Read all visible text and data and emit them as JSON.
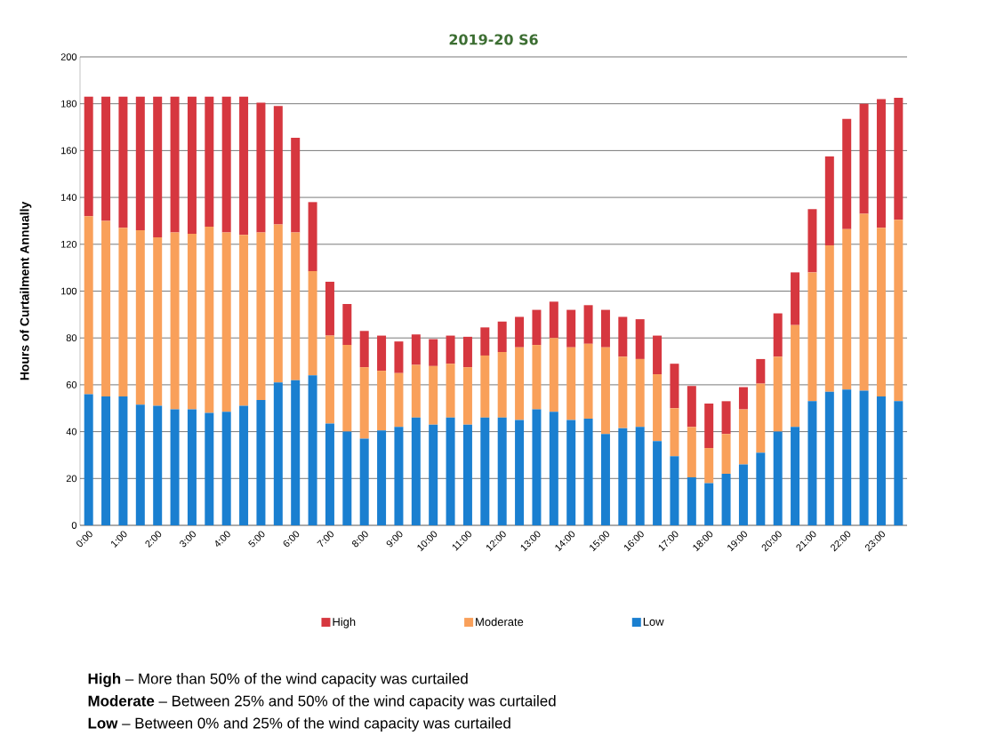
{
  "chart_data": {
    "type": "bar",
    "title": "2019-20 S6",
    "ylabel": "Hours of Curtailment Annually",
    "categories": [
      "0:00",
      null,
      "1:00",
      null,
      "2:00",
      null,
      "3:00",
      null,
      "4:00",
      null,
      "5:00",
      null,
      "6:00",
      null,
      "7:00",
      null,
      "8:00",
      null,
      "9:00",
      null,
      "10:00",
      null,
      "11:00",
      null,
      "12:00",
      null,
      "13:00",
      null,
      "14:00",
      null,
      "15:00",
      null,
      "16:00",
      null,
      "17:00",
      null,
      "18:00",
      null,
      "19:00",
      null,
      "20:00",
      null,
      "21:00",
      null,
      "22:00",
      null,
      "23:00",
      null
    ],
    "stacked": true,
    "series": [
      {
        "name": "Low",
        "color": "#1a7fd0",
        "values": [
          56,
          55,
          55,
          51.5,
          51,
          49.5,
          49.5,
          48,
          48.5,
          51,
          53.5,
          61,
          62,
          64,
          43.5,
          40,
          37,
          40.5,
          42,
          46,
          43,
          46,
          43,
          46,
          46,
          45,
          49.5,
          48.5,
          45,
          45.5,
          39,
          41.5,
          42,
          36,
          29.5,
          20.5,
          18,
          22,
          26,
          31,
          40,
          42,
          53,
          57,
          58,
          57.5,
          55,
          53
        ]
      },
      {
        "name": "Moderate",
        "color": "#f9a05a",
        "values": [
          76,
          75,
          72,
          74.5,
          72,
          75.5,
          75,
          79.5,
          76.5,
          73,
          71.5,
          67.5,
          63,
          44.5,
          37.5,
          37,
          30.5,
          25.5,
          23,
          22.5,
          25,
          23,
          24.5,
          26.5,
          28,
          31,
          27.5,
          31.5,
          31,
          32,
          37,
          30.5,
          29,
          28.5,
          20.5,
          21.5,
          15,
          17,
          23.5,
          29.5,
          32,
          43.5,
          55,
          62.5,
          68.5,
          75.5,
          72,
          77.5
        ]
      },
      {
        "name": "High",
        "color": "#d6373f",
        "values": [
          51,
          53,
          56,
          57,
          60,
          58,
          58.5,
          55.5,
          58,
          59,
          55.5,
          50.5,
          40.5,
          29.5,
          23,
          17.5,
          15.5,
          15,
          13.5,
          13,
          11.5,
          12,
          13,
          12,
          13,
          13,
          15,
          15.5,
          16,
          16.5,
          16,
          17,
          17,
          16.5,
          19,
          17.5,
          19,
          14,
          9.5,
          10.5,
          18.5,
          22.5,
          27,
          38,
          47,
          47,
          55,
          52
        ]
      }
    ],
    "ylim": [
      0,
      200
    ],
    "yticks": [
      0,
      20,
      40,
      60,
      80,
      100,
      120,
      140,
      160,
      180,
      200
    ],
    "grid": "y",
    "legend": "bottom",
    "annotations": [
      "**High** – More than 50% of the wind capacity was curtailed",
      "**Moderate** – Between 25% and 50% of the wind capacity was curtailed",
      "**Low** – Between 0% and 25% of the wind capacity was curtailed"
    ]
  }
}
